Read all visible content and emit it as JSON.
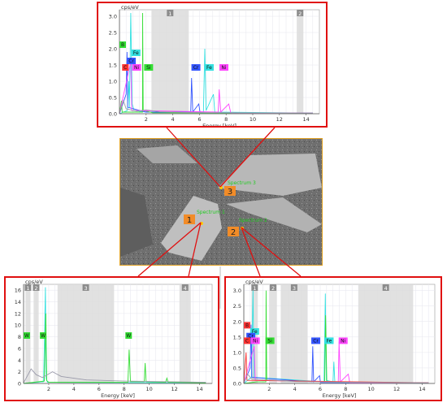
{
  "chart_data": [
    {
      "id": "top",
      "type": "line",
      "ylabel": "cps/eV",
      "xlabel": "Energy [keV]",
      "xlim": [
        0,
        15
      ],
      "ylim": [
        0,
        3.2
      ],
      "xticks": [
        "2",
        "4",
        "6",
        "8",
        "10",
        "12",
        "14"
      ],
      "xtick_values": [
        2,
        4,
        6,
        8,
        10,
        12,
        14
      ],
      "yticks": [
        "0.0",
        "0.5",
        "1.0",
        "1.5",
        "2.0",
        "2.5",
        "3.0"
      ],
      "ytick_values": [
        0,
        0.5,
        1.0,
        1.5,
        2.0,
        2.5,
        3.0
      ],
      "regions": [
        {
          "label": "1",
          "x0": 2.4,
          "x1": 5.2
        },
        {
          "label": "2",
          "x0": 13.3,
          "x1": 13.8
        }
      ],
      "element_labels": [
        {
          "text": "B",
          "x": 0.0,
          "y": 2.05,
          "color": "#33dd33"
        },
        {
          "text": "Fe",
          "x": 0.9,
          "y": 1.8,
          "color": "#33e0e0"
        },
        {
          "text": "Cr",
          "x": 0.55,
          "y": 1.55,
          "color": "#3355ff"
        },
        {
          "text": "C",
          "x": 0.2,
          "y": 1.35,
          "color": "#ff3333"
        },
        {
          "text": "Ni",
          "x": 0.95,
          "y": 1.35,
          "color": "#ff44ff"
        },
        {
          "text": "Si",
          "x": 1.85,
          "y": 1.35,
          "color": "#33dd33"
        },
        {
          "text": "Cr",
          "x": 5.4,
          "y": 1.35,
          "color": "#3355ff"
        },
        {
          "text": "Fe",
          "x": 6.4,
          "y": 1.35,
          "color": "#33e0e0"
        },
        {
          "text": "Ni",
          "x": 7.5,
          "y": 1.35,
          "color": "#ff44ff"
        }
      ],
      "series": [
        {
          "color": "#33e0e0",
          "points": [
            [
              0,
              0
            ],
            [
              0.6,
              0.1
            ],
            [
              0.7,
              1.0
            ],
            [
              0.75,
              0.2
            ],
            [
              0.85,
              3.1
            ],
            [
              0.95,
              0.3
            ],
            [
              1.1,
              0.1
            ],
            [
              2,
              0.05
            ],
            [
              6.3,
              0.05
            ],
            [
              6.4,
              2.0
            ],
            [
              6.5,
              0.1
            ],
            [
              7.05,
              0.6
            ],
            [
              7.15,
              0.05
            ],
            [
              14.5,
              0.02
            ]
          ]
        },
        {
          "color": "#3355ff",
          "points": [
            [
              0,
              0
            ],
            [
              0.5,
              0.6
            ],
            [
              0.57,
              1.9
            ],
            [
              0.62,
              0.2
            ],
            [
              2,
              0.05
            ],
            [
              5.35,
              0.05
            ],
            [
              5.41,
              1.1
            ],
            [
              5.5,
              0.05
            ],
            [
              5.95,
              0.3
            ],
            [
              6.05,
              0.03
            ],
            [
              14.5,
              0.02
            ]
          ]
        },
        {
          "color": "#33dd33",
          "points": [
            [
              0,
              0
            ],
            [
              0.15,
              0.4
            ],
            [
              0.2,
              0.05
            ],
            [
              1.0,
              0.05
            ],
            [
              1.73,
              0.05
            ],
            [
              1.74,
              3.1
            ],
            [
              1.78,
              0.1
            ],
            [
              2.5,
              0.03
            ],
            [
              14.5,
              0.02
            ]
          ]
        },
        {
          "color": "#ff44ff",
          "points": [
            [
              0,
              0
            ],
            [
              0.85,
              1.6
            ],
            [
              0.92,
              0.1
            ],
            [
              7.4,
              0.05
            ],
            [
              7.48,
              0.75
            ],
            [
              7.6,
              0.05
            ],
            [
              8.2,
              0.3
            ],
            [
              8.35,
              0.03
            ],
            [
              14.5,
              0.02
            ]
          ]
        },
        {
          "color": "#9a9aaa",
          "points": [
            [
              0,
              0.02
            ],
            [
              0.3,
              0.4
            ],
            [
              0.5,
              0.15
            ],
            [
              1.3,
              0.08
            ],
            [
              2.0,
              0.12
            ],
            [
              3.0,
              0.06
            ],
            [
              5.0,
              0.04
            ],
            [
              9.0,
              0.03
            ],
            [
              14.5,
              0.02
            ]
          ]
        }
      ]
    },
    {
      "id": "left",
      "type": "line",
      "ylabel": "cps/eV",
      "xlabel": "Energy [keV]",
      "xlim": [
        0,
        15
      ],
      "ylim": [
        0,
        17
      ],
      "xticks": [
        "2",
        "4",
        "6",
        "8",
        "10",
        "12",
        "14"
      ],
      "xtick_values": [
        2,
        4,
        6,
        8,
        10,
        12,
        14
      ],
      "yticks": [
        "0",
        "2",
        "4",
        "6",
        "8",
        "10",
        "12",
        "14",
        "16"
      ],
      "ytick_values": [
        0,
        2,
        4,
        6,
        8,
        10,
        12,
        14,
        16
      ],
      "regions": [
        {
          "label": "1",
          "x0": 0.15,
          "x1": 0.55
        },
        {
          "label": "2",
          "x0": 0.8,
          "x1": 1.2
        },
        {
          "label": "3",
          "x0": 2.7,
          "x1": 7.2
        },
        {
          "label": "4",
          "x0": 12.4,
          "x1": 13.3
        }
      ],
      "element_labels": [
        {
          "text": "W",
          "x": 0.0,
          "y": 7.8,
          "color": "#33dd33"
        },
        {
          "text": "W",
          "x": 1.3,
          "y": 7.8,
          "color": "#33dd33"
        },
        {
          "text": "W",
          "x": 8.1,
          "y": 7.8,
          "color": "#33dd33"
        }
      ],
      "series": [
        {
          "color": "#33e0e0",
          "points": [
            [
              0,
              0
            ],
            [
              1.6,
              0.3
            ],
            [
              1.74,
              16.5
            ],
            [
              1.8,
              0.8
            ],
            [
              1.9,
              0.2
            ],
            [
              14.5,
              0.1
            ]
          ]
        },
        {
          "color": "#33dd33",
          "points": [
            [
              0,
              0
            ],
            [
              1.65,
              0.4
            ],
            [
              1.77,
              12.0
            ],
            [
              1.84,
              0.5
            ],
            [
              2.0,
              0.2
            ],
            [
              8.3,
              0.2
            ],
            [
              8.4,
              5.8
            ],
            [
              8.5,
              0.3
            ],
            [
              9.6,
              0.3
            ],
            [
              9.67,
              3.5
            ],
            [
              9.75,
              0.3
            ],
            [
              11.3,
              0.2
            ],
            [
              11.4,
              0.9
            ],
            [
              11.5,
              0.2
            ],
            [
              12.0,
              0.2
            ],
            [
              14.5,
              0.1
            ]
          ]
        },
        {
          "color": "#9a9aaa",
          "points": [
            [
              0,
              0.1
            ],
            [
              0.6,
              2.5
            ],
            [
              1.0,
              1.5
            ],
            [
              1.5,
              1.0
            ],
            [
              2.3,
              2.0
            ],
            [
              3.0,
              1.2
            ],
            [
              5.0,
              0.6
            ],
            [
              8.0,
              0.4
            ],
            [
              14.5,
              0.2
            ]
          ]
        }
      ]
    },
    {
      "id": "right",
      "type": "line",
      "ylabel": "cps/eV",
      "xlabel": "Energy [keV]",
      "xlim": [
        0,
        15
      ],
      "ylim": [
        0,
        3.2
      ],
      "xticks": [
        "2",
        "4",
        "6",
        "8",
        "10",
        "12",
        "14"
      ],
      "xtick_values": [
        2,
        4,
        6,
        8,
        10,
        12,
        14
      ],
      "yticks": [
        "0.0",
        "0.5",
        "1.0",
        "1.5",
        "2.0",
        "2.5",
        "3.0"
      ],
      "ytick_values": [
        0,
        0.5,
        1.0,
        1.5,
        2.0,
        2.5,
        3.0
      ],
      "regions": [
        {
          "label": "1",
          "x0": 0.6,
          "x1": 1.1
        },
        {
          "label": "2",
          "x0": 2.0,
          "x1": 2.6
        },
        {
          "label": "3",
          "x0": 2.9,
          "x1": 5.0
        },
        {
          "label": "4",
          "x0": 9.0,
          "x1": 13.3
        }
      ],
      "element_labels": [
        {
          "text": "B",
          "x": 0.0,
          "y": 1.8,
          "color": "#ff3333"
        },
        {
          "text": "Fe",
          "x": 0.5,
          "y": 1.6,
          "color": "#33e0e0"
        },
        {
          "text": "Cr",
          "x": 0.2,
          "y": 1.45,
          "color": "#3355ff"
        },
        {
          "text": "C",
          "x": 0.0,
          "y": 1.3,
          "color": "#ff3333"
        },
        {
          "text": "Ni",
          "x": 0.55,
          "y": 1.3,
          "color": "#ff44ff"
        },
        {
          "text": "Si",
          "x": 1.7,
          "y": 1.3,
          "color": "#33dd33"
        },
        {
          "text": "Cr",
          "x": 5.3,
          "y": 1.3,
          "color": "#3355ff"
        },
        {
          "text": "Fe",
          "x": 6.35,
          "y": 1.3,
          "color": "#33e0e0"
        },
        {
          "text": "Ni",
          "x": 7.45,
          "y": 1.3,
          "color": "#ff44ff"
        }
      ],
      "series": [
        {
          "color": "#33e0e0",
          "points": [
            [
              0,
              0
            ],
            [
              0.6,
              0.2
            ],
            [
              0.72,
              3.0
            ],
            [
              0.8,
              0.2
            ],
            [
              6.3,
              0.05
            ],
            [
              6.4,
              2.9
            ],
            [
              6.48,
              0.1
            ],
            [
              7.0,
              0.05
            ],
            [
              7.07,
              0.7
            ],
            [
              7.15,
              0.05
            ],
            [
              14.5,
              0.02
            ]
          ]
        },
        {
          "color": "#3355ff",
          "points": [
            [
              0,
              0
            ],
            [
              0.5,
              0.5
            ],
            [
              0.57,
              1.9
            ],
            [
              0.63,
              0.2
            ],
            [
              5.35,
              0.05
            ],
            [
              5.41,
              1.2
            ],
            [
              5.48,
              0.05
            ],
            [
              5.95,
              0.25
            ],
            [
              6.02,
              0.03
            ],
            [
              14.5,
              0.02
            ]
          ]
        },
        {
          "color": "#33dd33",
          "points": [
            [
              0,
              0
            ],
            [
              1.0,
              0.05
            ],
            [
              1.73,
              0.05
            ],
            [
              1.75,
              3.0
            ],
            [
              1.8,
              0.1
            ],
            [
              6.35,
              0.05
            ],
            [
              6.42,
              2.2
            ],
            [
              6.52,
              0.05
            ],
            [
              14.5,
              0.02
            ]
          ]
        },
        {
          "color": "#ff44ff",
          "points": [
            [
              0,
              0
            ],
            [
              0.82,
              1.2
            ],
            [
              0.9,
              0.1
            ],
            [
              7.42,
              0.05
            ],
            [
              7.48,
              1.35
            ],
            [
              7.58,
              0.05
            ],
            [
              8.2,
              0.3
            ],
            [
              8.32,
              0.03
            ],
            [
              14.5,
              0.02
            ]
          ]
        },
        {
          "color": "#ff3333",
          "points": [
            [
              0,
              0
            ],
            [
              0.18,
              1.0
            ],
            [
              0.25,
              0.1
            ],
            [
              14.5,
              0.02
            ]
          ]
        },
        {
          "color": "#9a9aaa",
          "points": [
            [
              0,
              0.02
            ],
            [
              0.3,
              0.3
            ],
            [
              0.6,
              0.15
            ],
            [
              1.5,
              0.12
            ],
            [
              2.5,
              0.1
            ],
            [
              4,
              0.06
            ],
            [
              8,
              0.04
            ],
            [
              14.5,
              0.02
            ]
          ]
        }
      ]
    }
  ],
  "sem": {
    "markers": [
      {
        "number": "1",
        "spectrum_label": "Spectrum 1"
      },
      {
        "number": "2",
        "spectrum_label": "Spectrum 2"
      },
      {
        "number": "3",
        "spectrum_label": "Spectrum 3"
      }
    ]
  }
}
